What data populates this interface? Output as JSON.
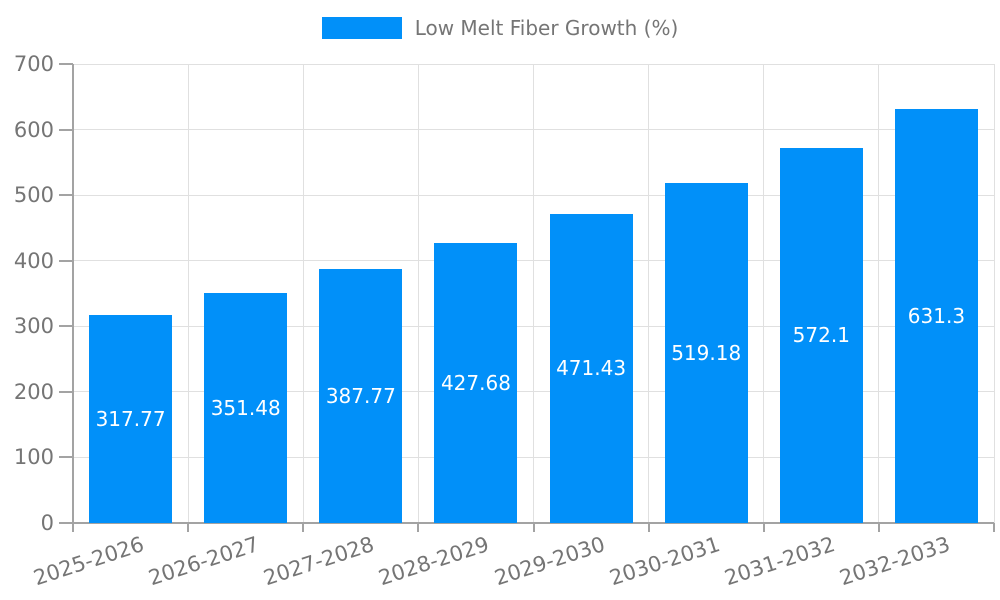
{
  "legend": {
    "label": "Low Melt Fiber Growth (%)"
  },
  "chart_data": {
    "type": "bar",
    "title": "Low Melt Fiber Growth (%)",
    "categories": [
      "2025-2026",
      "2026-2027",
      "2027-2028",
      "2028-2029",
      "2029-2030",
      "2030-2031",
      "2031-2032",
      "2032-2033"
    ],
    "values": [
      317.77,
      351.48,
      387.77,
      427.68,
      471.43,
      519.18,
      572.1,
      631.3
    ],
    "value_labels": [
      "317.77",
      "351.48",
      "387.77",
      "427.68",
      "471.43",
      "519.18",
      "572.1",
      "631.3"
    ],
    "xlabel": "",
    "ylabel": "",
    "ylim": [
      0,
      700
    ],
    "yticks": [
      0,
      100,
      200,
      300,
      400,
      500,
      600,
      700
    ],
    "grid": true,
    "legend_position": "top",
    "colors": {
      "bar": "#0190f9",
      "value_label": "#ffffff",
      "axis_text": "#757575",
      "grid_line": "#e0e0e0",
      "axis_line": "#a3a3a3",
      "background": "#ffffff"
    }
  }
}
